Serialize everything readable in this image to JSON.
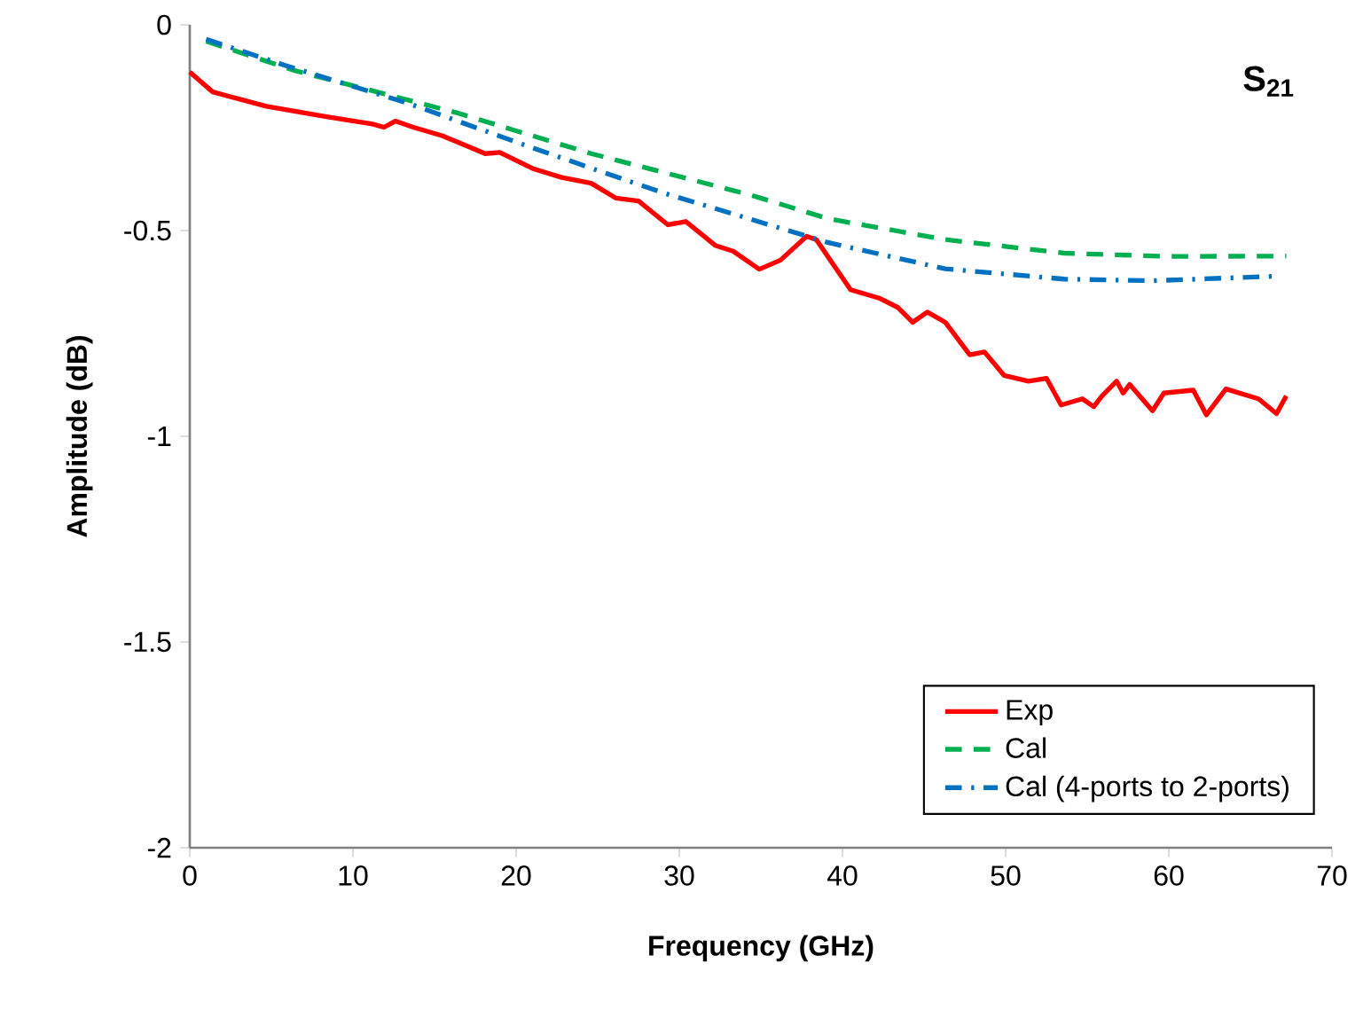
{
  "chart_data": {
    "type": "line",
    "xlabel": "Frequency (GHz)",
    "ylabel": "Amplitude (dB)",
    "annotations": [
      "S$_{21}$"
    ],
    "xlim": [
      0,
      70
    ],
    "xticks": [
      0,
      10,
      20,
      30,
      40,
      50,
      60,
      70
    ],
    "ylim": [
      -2,
      0
    ],
    "yticks": [
      -2,
      -1.5,
      -1,
      -0.5,
      0
    ],
    "legend": "bottom right",
    "grid": false,
    "series": [
      {
        "name": "Exp",
        "color": "#ff0000",
        "line_style": "solid",
        "x": [
          0,
          1.4,
          4.7,
          8.3,
          11.2,
          11.9,
          12.6,
          13.7,
          15.5,
          18.1,
          19.0,
          21.0,
          22.8,
          24.6,
          26.1,
          27.5,
          29.3,
          30.4,
          32.2,
          33.3,
          34.9,
          36.2,
          37.8,
          38.4,
          39.5,
          40.5,
          42.3,
          43.4,
          44.3,
          45.2,
          46.3,
          47.8,
          48.7,
          49.9,
          51.4,
          52.5,
          53.4,
          54.7,
          55.4,
          55.9,
          56.8,
          57.2,
          57.6,
          59.0,
          59.7,
          61.5,
          62.3,
          63.5,
          65.5,
          66.6,
          67.2
        ],
        "values": [
          -0.115,
          -0.163,
          -0.198,
          -0.223,
          -0.241,
          -0.249,
          -0.234,
          -0.249,
          -0.27,
          -0.313,
          -0.31,
          -0.349,
          -0.371,
          -0.385,
          -0.421,
          -0.428,
          -0.486,
          -0.478,
          -0.536,
          -0.55,
          -0.594,
          -0.572,
          -0.514,
          -0.522,
          -0.586,
          -0.644,
          -0.665,
          -0.687,
          -0.723,
          -0.698,
          -0.723,
          -0.802,
          -0.795,
          -0.852,
          -0.866,
          -0.859,
          -0.924,
          -0.909,
          -0.928,
          -0.902,
          -0.866,
          -0.895,
          -0.874,
          -0.938,
          -0.895,
          -0.888,
          -0.948,
          -0.885,
          -0.909,
          -0.945,
          -0.902
        ]
      },
      {
        "name": "Cal",
        "color": "#00b050",
        "line_style": "dashed",
        "x": [
          1,
          6.5,
          16.3,
          24.6,
          34.4,
          39.1,
          46.3,
          53.6,
          60,
          67.2
        ],
        "values": [
          -0.04,
          -0.112,
          -0.213,
          -0.313,
          -0.414,
          -0.471,
          -0.522,
          -0.555,
          -0.563,
          -0.562
        ]
      },
      {
        "name": "Cal (4-ports to 2-ports)",
        "color": "#0070c0",
        "line_style": "dashdot",
        "x": [
          1,
          5.8,
          13.4,
          21,
          28.9,
          39.1,
          46.3,
          53.6,
          59,
          66.6
        ],
        "values": [
          -0.035,
          -0.098,
          -0.191,
          -0.299,
          -0.407,
          -0.529,
          -0.593,
          -0.618,
          -0.622,
          -0.611
        ]
      }
    ]
  }
}
